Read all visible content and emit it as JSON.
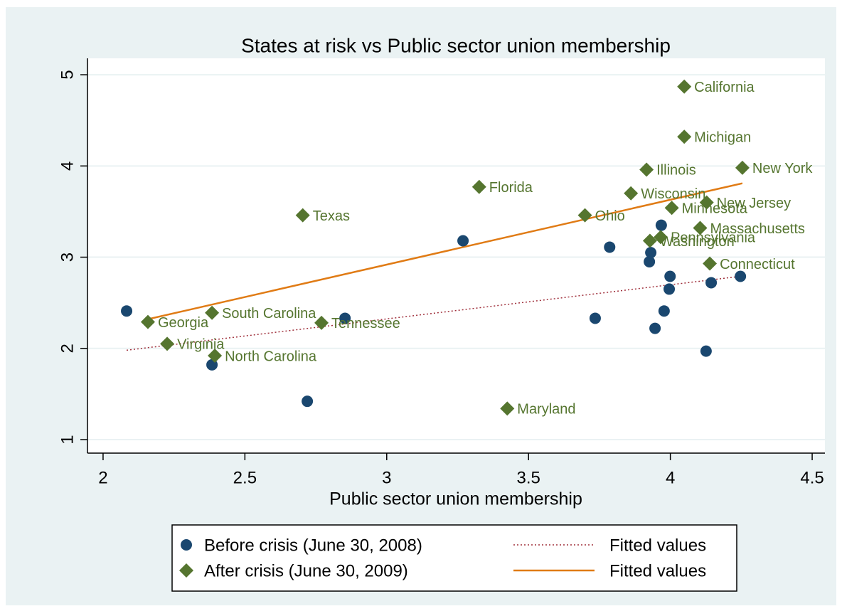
{
  "chart_data": {
    "type": "scatter",
    "title": "States at risk vs Public sector union membership",
    "x_label": "Public sector union membership",
    "xlim": [
      1.945,
      4.545
    ],
    "ylim": [
      0.852,
      5.18
    ],
    "xticks": [
      2,
      2.5,
      3,
      3.5,
      4,
      4.5
    ],
    "yticks": [
      1,
      2,
      3,
      4,
      5
    ],
    "grid": true,
    "legend_position": "bottom",
    "series": [
      {
        "name": "Before crisis (June 30, 2008)",
        "type": "scatter",
        "marker": "circle",
        "color": "#1a476f",
        "x": [
          2.083,
          2.384,
          2.72,
          2.853,
          3.269,
          3.735,
          3.786,
          3.926,
          3.968,
          3.931,
          3.999,
          3.996,
          3.978,
          3.946,
          4.126,
          4.144,
          4.247
        ],
        "values": [
          2.41,
          1.82,
          1.42,
          2.33,
          3.18,
          2.33,
          3.11,
          2.95,
          3.35,
          3.05,
          2.79,
          2.65,
          2.41,
          2.22,
          1.97,
          2.72,
          2.79
        ]
      },
      {
        "name": "Fitted values",
        "type": "line",
        "dash": "dotted",
        "color": "#a0303c",
        "x": [
          2.083,
          4.247
        ],
        "values": [
          1.98,
          2.79
        ]
      },
      {
        "name": "After crisis (June 30, 2009)",
        "type": "scatter",
        "marker": "diamond",
        "color": "#55752f",
        "x": [
          4.049,
          4.049,
          3.916,
          4.254,
          3.326,
          3.861,
          4.128,
          4.005,
          2.704,
          3.699,
          4.105,
          3.966,
          3.928,
          4.139,
          2.384,
          2.158,
          2.77,
          2.226,
          2.394,
          3.425
        ],
        "values": [
          4.87,
          4.32,
          3.96,
          3.98,
          3.77,
          3.7,
          3.6,
          3.54,
          3.46,
          3.46,
          3.32,
          3.22,
          3.18,
          2.93,
          2.39,
          2.29,
          2.28,
          2.05,
          1.92,
          1.34
        ],
        "labels": [
          "California",
          "Michigan",
          "Illinois",
          "New York",
          "Florida",
          "Wisconsin",
          "New Jersey",
          "Minnesota",
          "Texas",
          "Ohio",
          "Massachusetts",
          "Pennsylvania",
          "Washington",
          "Connecticut",
          "South Carolina",
          "Georgia",
          "Tennessee",
          "Virginia",
          "North Carolina",
          "Maryland"
        ]
      },
      {
        "name": "Fitted values",
        "type": "line",
        "dash": "solid",
        "color": "#e07b15",
        "x": [
          2.158,
          4.254
        ],
        "values": [
          2.32,
          3.81
        ]
      }
    ]
  }
}
